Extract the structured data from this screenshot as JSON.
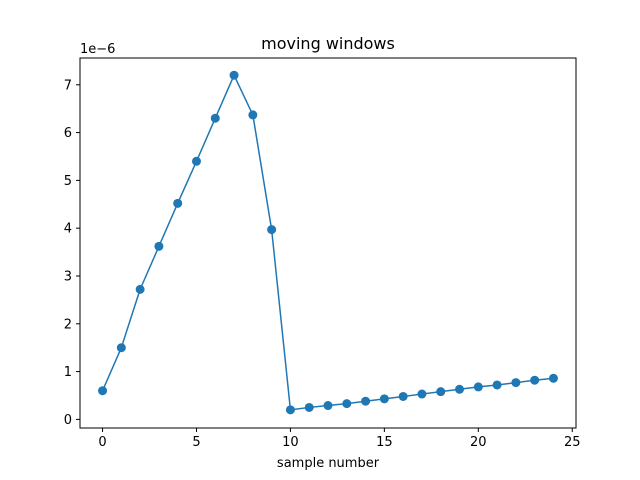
{
  "chart_data": {
    "type": "line",
    "title": "moving windows",
    "xlabel": "sample number",
    "ylabel": "",
    "y_offset_label": "1e−6",
    "xlim": [
      -1.2,
      25.2
    ],
    "ylim": [
      -0.18,
      7.56
    ],
    "xticks": [
      0,
      5,
      10,
      15,
      20,
      25
    ],
    "yticks": [
      0,
      1,
      2,
      3,
      4,
      5,
      6,
      7
    ],
    "grid": false,
    "series": [
      {
        "color": "#1f77b4",
        "marker": "circle",
        "x": [
          0,
          1,
          2,
          3,
          4,
          5,
          6,
          7,
          8,
          9,
          10,
          11,
          12,
          13,
          14,
          15,
          16,
          17,
          18,
          19,
          20,
          21,
          22,
          23,
          24
        ],
        "y": [
          0.6,
          1.5,
          2.72,
          3.62,
          4.52,
          5.4,
          6.3,
          7.2,
          6.37,
          3.97,
          0.2,
          0.25,
          0.29,
          0.33,
          0.38,
          0.43,
          0.48,
          0.53,
          0.58,
          0.63,
          0.68,
          0.72,
          0.77,
          0.82,
          0.86
        ]
      }
    ]
  }
}
